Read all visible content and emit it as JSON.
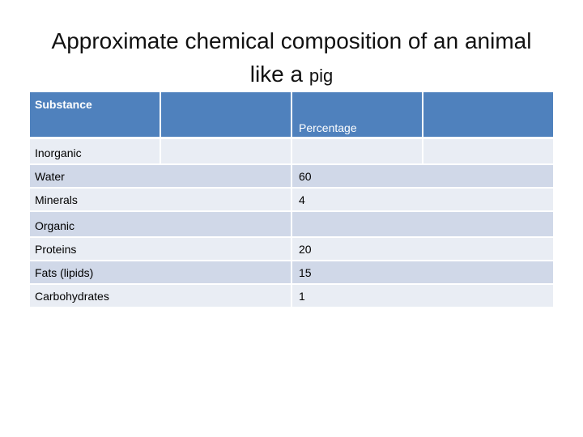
{
  "title": {
    "line1": "Approximate chemical composition of an animal",
    "line2_main": "like a ",
    "line2_small": "pig"
  },
  "table": {
    "header": {
      "substance": "Substance",
      "percentage": "Percentage"
    },
    "rows": [
      {
        "name": "Inorganic",
        "value": ""
      },
      {
        "name": "Water",
        "value": "60"
      },
      {
        "name": "Minerals",
        "value": "4"
      },
      {
        "name": "Organic",
        "value": ""
      },
      {
        "name": "Proteins",
        "value": "20"
      },
      {
        "name": "Fats (lipids)",
        "value": "15"
      },
      {
        "name": "Carbohydrates",
        "value": "1"
      }
    ]
  },
  "colors": {
    "header_bg": "#4f81bd",
    "row_light": "#e9edf4",
    "row_dark": "#d0d8e8"
  }
}
